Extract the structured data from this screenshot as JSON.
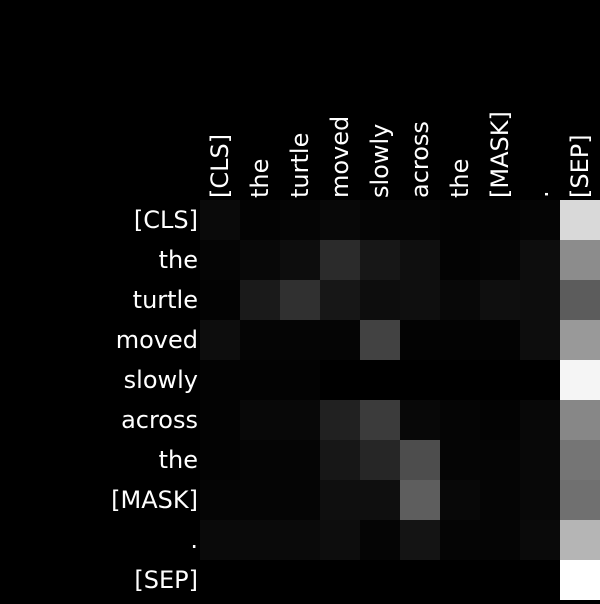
{
  "chart_data": {
    "type": "heatmap",
    "title": "",
    "xlabel": "",
    "ylabel": "",
    "x_tokens": [
      "[CLS]",
      "the",
      "turtle",
      "moved",
      "slowly",
      "across",
      "the",
      "[MASK]",
      ".",
      "[SEP]"
    ],
    "y_tokens": [
      "[CLS]",
      "the",
      "turtle",
      "moved",
      "slowly",
      "across",
      "the",
      "[MASK]",
      ".",
      "[SEP]"
    ],
    "value_range": [
      0,
      1
    ],
    "colormap": "grayscale (black = 0, white = 1)",
    "background_color": "#000000",
    "label_color": "#ffffff",
    "values": [
      [
        0.04,
        0.01,
        0.02,
        0.03,
        0.02,
        0.02,
        0.01,
        0.01,
        0.02,
        0.85
      ],
      [
        0.02,
        0.03,
        0.05,
        0.17,
        0.09,
        0.06,
        0.01,
        0.02,
        0.05,
        0.55
      ],
      [
        0.01,
        0.1,
        0.19,
        0.09,
        0.05,
        0.06,
        0.03,
        0.06,
        0.05,
        0.36
      ],
      [
        0.05,
        0.02,
        0.02,
        0.02,
        0.26,
        0.01,
        0.01,
        0.01,
        0.05,
        0.6
      ],
      [
        0.01,
        0.01,
        0.01,
        0.0,
        0.0,
        0.0,
        0.0,
        0.0,
        0.0,
        0.96
      ],
      [
        0.01,
        0.03,
        0.03,
        0.13,
        0.23,
        0.03,
        0.02,
        0.01,
        0.03,
        0.53
      ],
      [
        0.01,
        0.02,
        0.02,
        0.09,
        0.15,
        0.3,
        0.02,
        0.02,
        0.03,
        0.46
      ],
      [
        0.02,
        0.02,
        0.02,
        0.06,
        0.06,
        0.37,
        0.03,
        0.02,
        0.03,
        0.44
      ],
      [
        0.04,
        0.04,
        0.04,
        0.05,
        0.02,
        0.08,
        0.02,
        0.02,
        0.04,
        0.71
      ],
      [
        0.0,
        0.0,
        0.0,
        0.0,
        0.0,
        0.0,
        0.0,
        0.0,
        0.0,
        1.0
      ]
    ]
  }
}
